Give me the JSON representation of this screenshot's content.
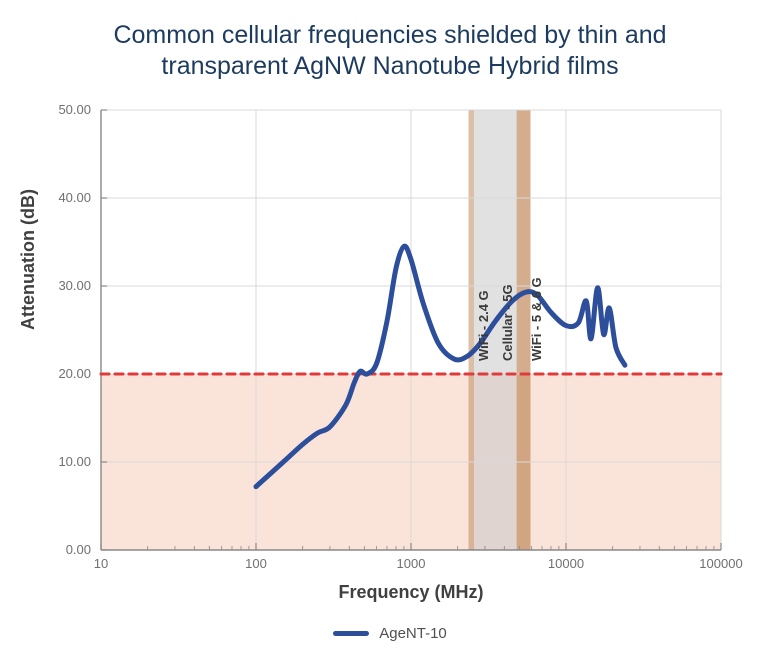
{
  "title": "Common cellular frequencies shielded by thin and transparent AgNW Nanotube Hybrid films",
  "xlabel": "Frequency (MHz)",
  "ylabel": "Attenuation (dB)",
  "type": "line",
  "background_color": "#ffffff",
  "title_color": "#1d3b5f",
  "title_fontsize": 25,
  "label_fontsize": 18,
  "tick_fontsize": 13,
  "tick_color": "#707070",
  "axis_color": "#888888",
  "grid_color": "#d9d9d9",
  "x": {
    "scale": "log",
    "min": 10,
    "max": 100000,
    "ticks": [
      10,
      100,
      1000,
      10000,
      100000
    ],
    "tick_labels": [
      "10",
      "100",
      "1000",
      "10000",
      "100000"
    ]
  },
  "y": {
    "scale": "linear",
    "min": 0,
    "max": 50,
    "ticks": [
      0,
      10,
      20,
      30,
      40,
      50
    ],
    "tick_labels": [
      "0.00",
      "10.00",
      "20.00",
      "30.00",
      "40.00",
      "50.00"
    ]
  },
  "threshold": {
    "value": 20,
    "line_color": "#e03a3a",
    "line_width": 3,
    "dash": "8,6",
    "fill_color": "#f6ccb8",
    "fill_opacity": 0.55
  },
  "bands": [
    {
      "label": "WiFi - 2.4 G",
      "x_start": 2350,
      "x_end": 2550,
      "fill": "#c08a5e",
      "opacity": 0.55
    },
    {
      "label": "Cellular - 5G",
      "x_start": 2550,
      "x_end": 4800,
      "fill": "#c9c9c9",
      "opacity": 0.55
    },
    {
      "label": "WiFi - 5 & 6 G",
      "x_start": 4800,
      "x_end": 5900,
      "fill": "#c08a5e",
      "opacity": 0.7
    }
  ],
  "band_label_fontsize": 13,
  "series": [
    {
      "name": "AgeNT-10",
      "color": "#2c4e9b",
      "line_width": 5,
      "points": [
        [
          100,
          7.2
        ],
        [
          150,
          10.0
        ],
        [
          200,
          12.0
        ],
        [
          250,
          13.3
        ],
        [
          300,
          14.0
        ],
        [
          380,
          16.5
        ],
        [
          430,
          19.0
        ],
        [
          470,
          20.3
        ],
        [
          520,
          20.0
        ],
        [
          600,
          21.2
        ],
        [
          700,
          26.0
        ],
        [
          800,
          32.0
        ],
        [
          900,
          34.5
        ],
        [
          1000,
          33.0
        ],
        [
          1200,
          28.0
        ],
        [
          1500,
          23.5
        ],
        [
          1900,
          21.7
        ],
        [
          2300,
          22.0
        ],
        [
          2800,
          23.5
        ],
        [
          3500,
          26.0
        ],
        [
          4500,
          28.3
        ],
        [
          5500,
          29.3
        ],
        [
          6500,
          29.0
        ],
        [
          8000,
          27.0
        ],
        [
          10000,
          25.5
        ],
        [
          12000,
          25.8
        ],
        [
          13500,
          28.3
        ],
        [
          14500,
          24.0
        ],
        [
          16000,
          29.8
        ],
        [
          17500,
          24.5
        ],
        [
          19000,
          27.5
        ],
        [
          21000,
          23.0
        ],
        [
          24000,
          21.0
        ]
      ]
    }
  ],
  "legend": {
    "items": [
      {
        "label": "AgeNT-10",
        "color": "#2c4e9b"
      }
    ]
  }
}
